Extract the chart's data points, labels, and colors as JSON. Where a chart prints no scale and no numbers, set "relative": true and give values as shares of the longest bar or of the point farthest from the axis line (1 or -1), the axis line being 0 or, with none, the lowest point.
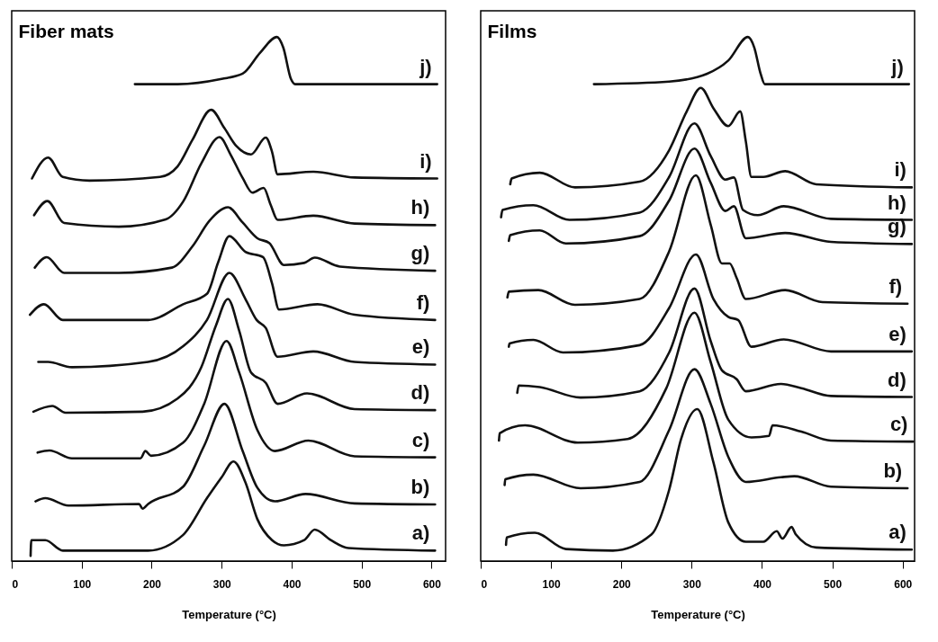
{
  "chart_data": [
    {
      "type": "line",
      "title": "Fiber mats",
      "xlabel": "Temperature (°C)",
      "relative": true,
      "xlim": [
        0,
        620
      ],
      "xticks": [
        0,
        100,
        200,
        300,
        400,
        500,
        600
      ],
      "series": [
        {
          "name": "a)",
          "color": "#111111",
          "x": [
            27,
            28,
            48,
            73,
            195,
            245,
            279,
            300,
            317,
            334,
            351,
            372,
            389,
            418,
            433,
            456,
            481,
            605
          ],
          "values": [
            0.01,
            0.04,
            0.04,
            0.02,
            0.02,
            0.05,
            0.12,
            0.16,
            0.19,
            0.15,
            0.08,
            0.04,
            0.03,
            0.04,
            0.06,
            0.04,
            0.025,
            0.02
          ]
        },
        {
          "name": "b)",
          "color": "#111111",
          "x": [
            34,
            48,
            81,
            182,
            187,
            195,
            245,
            275,
            304,
            330,
            351,
            376,
            420,
            490,
            605
          ],
          "values": [
            0.114,
            0.12,
            0.106,
            0.109,
            0.1,
            0.109,
            0.142,
            0.22,
            0.3,
            0.21,
            0.14,
            0.114,
            0.128,
            0.11,
            0.108
          ]
        },
        {
          "name": "c)",
          "color": "#111111",
          "x": [
            37,
            54,
            86,
            184,
            191,
            199,
            245,
            275,
            307,
            325,
            351,
            376,
            424,
            490,
            605
          ],
          "values": [
            0.207,
            0.211,
            0.196,
            0.196,
            0.21,
            0.201,
            0.226,
            0.3,
            0.42,
            0.36,
            0.25,
            0.21,
            0.23,
            0.2,
            0.198
          ]
        },
        {
          "name": "d)",
          "color": "#111111",
          "x": [
            31,
            58,
            77,
            187,
            237,
            271,
            292,
            309,
            325,
            342,
            363,
            380,
            422,
            490,
            605
          ],
          "values": [
            0.285,
            0.296,
            0.283,
            0.285,
            0.31,
            0.37,
            0.45,
            0.5,
            0.44,
            0.36,
            0.34,
            0.3,
            0.32,
            0.29,
            0.288
          ]
        },
        {
          "name": "e)",
          "color": "#111111",
          "x": [
            38,
            52,
            86,
            195,
            245,
            279,
            311,
            334,
            350,
            363,
            380,
            431,
            490,
            605
          ],
          "values": [
            0.38,
            0.38,
            0.37,
            0.38,
            0.41,
            0.46,
            0.55,
            0.5,
            0.46,
            0.445,
            0.39,
            0.4,
            0.38,
            0.375
          ]
        },
        {
          "name": "f)",
          "color": "#111111",
          "x": [
            26,
            46,
            73,
            195,
            245,
            279,
            295,
            311,
            334,
            359,
            372,
            382,
            437,
            490,
            605
          ],
          "values": [
            0.47,
            0.49,
            0.46,
            0.46,
            0.49,
            0.51,
            0.57,
            0.62,
            0.59,
            0.58,
            0.53,
            0.48,
            0.49,
            0.47,
            0.46
          ]
        },
        {
          "name": "g)",
          "color": "#111111",
          "x": [
            33,
            50,
            75,
            153,
            229,
            258,
            283,
            309,
            330,
            351,
            368,
            389,
            418,
            433,
            469,
            605
          ],
          "values": [
            0.56,
            0.58,
            0.55,
            0.55,
            0.56,
            0.6,
            0.65,
            0.675,
            0.646,
            0.616,
            0.607,
            0.565,
            0.569,
            0.579,
            0.562,
            0.554
          ]
        },
        {
          "name": "h)",
          "color": "#111111",
          "x": [
            32,
            51,
            75,
            153,
            220,
            245,
            271,
            297,
            313,
            330,
            344,
            360,
            370,
            380,
            431,
            490,
            605
          ],
          "values": [
            0.66,
            0.687,
            0.645,
            0.638,
            0.652,
            0.686,
            0.759,
            0.809,
            0.775,
            0.731,
            0.703,
            0.712,
            0.68,
            0.651,
            0.659,
            0.644,
            0.641
          ]
        },
        {
          "name": "i)",
          "color": "#111111",
          "x": [
            29,
            52,
            73,
            111,
            212,
            237,
            258,
            285,
            304,
            321,
            342,
            363,
            372,
            380,
            431,
            490,
            608
          ],
          "values": [
            0.73,
            0.77,
            0.733,
            0.726,
            0.733,
            0.753,
            0.803,
            0.861,
            0.826,
            0.792,
            0.776,
            0.808,
            0.781,
            0.738,
            0.743,
            0.732,
            0.73
          ]
        },
        {
          "name": "j)",
          "color": "#111111",
          "x": [
            176,
            237,
            300,
            330,
            355,
            379,
            388,
            399,
            405,
            608
          ],
          "values": [
            0.91,
            0.91,
            0.92,
            0.93,
            0.97,
            1.0,
            0.98,
            0.92,
            0.91,
            0.91
          ]
        }
      ]
    },
    {
      "type": "line",
      "title": "Films",
      "xlabel": "Temperature (°C)",
      "relative": true,
      "xlim": [
        0,
        617
      ],
      "xticks": [
        0,
        100,
        200,
        300,
        400,
        500,
        600
      ],
      "series": [
        {
          "name": "a)",
          "color": "#111111",
          "x": [
            36,
            37,
            77,
            121,
            188,
            243,
            268,
            285,
            308,
            331,
            352,
            377,
            402,
            421,
            429,
            442,
            448,
            477,
            613
          ],
          "values": [
            0.031,
            0.045,
            0.054,
            0.023,
            0.02,
            0.051,
            0.136,
            0.233,
            0.29,
            0.188,
            0.074,
            0.037,
            0.037,
            0.057,
            0.043,
            0.065,
            0.051,
            0.026,
            0.022
          ]
        },
        {
          "name": "b)",
          "color": "#111111",
          "x": [
            34,
            35,
            75,
            142,
            226,
            268,
            304,
            327,
            352,
            377,
            427,
            446,
            498,
            607
          ],
          "values": [
            0.145,
            0.156,
            0.165,
            0.139,
            0.151,
            0.25,
            0.366,
            0.3,
            0.199,
            0.151,
            0.16,
            0.162,
            0.142,
            0.139
          ]
        },
        {
          "name": "c)",
          "color": "#111111",
          "x": [
            26,
            27,
            63,
            138,
            209,
            264,
            304,
            327,
            352,
            385,
            410,
            415,
            456,
            498,
            615
          ],
          "values": [
            0.23,
            0.244,
            0.259,
            0.226,
            0.233,
            0.33,
            0.474,
            0.38,
            0.27,
            0.236,
            0.239,
            0.259,
            0.247,
            0.23,
            0.228
          ]
        },
        {
          "name": "d)",
          "color": "#111111",
          "x": [
            52,
            54,
            84,
            142,
            226,
            268,
            304,
            327,
            343,
            364,
            377,
            427,
            456,
            498,
            613
          ],
          "values": [
            0.321,
            0.335,
            0.332,
            0.312,
            0.324,
            0.398,
            0.52,
            0.42,
            0.364,
            0.347,
            0.324,
            0.338,
            0.33,
            0.315,
            0.313
          ]
        },
        {
          "name": "e)",
          "color": "#111111",
          "x": [
            40,
            41,
            75,
            117,
            226,
            268,
            306,
            331,
            352,
            366,
            385,
            431,
            498,
            613
          ],
          "values": [
            0.409,
            0.415,
            0.422,
            0.398,
            0.412,
            0.483,
            0.585,
            0.5,
            0.466,
            0.46,
            0.409,
            0.423,
            0.4,
            0.4
          ]
        },
        {
          "name": "f)",
          "color": "#111111",
          "x": [
            38,
            40,
            82,
            134,
            226,
            268,
            306,
            327,
            343,
            354,
            364,
            377,
            433,
            486,
            607
          ],
          "values": [
            0.503,
            0.514,
            0.517,
            0.489,
            0.5,
            0.591,
            0.736,
            0.642,
            0.568,
            0.568,
            0.54,
            0.5,
            0.517,
            0.494,
            0.491
          ]
        },
        {
          "name": "g)",
          "color": "#111111",
          "x": [
            40,
            42,
            84,
            121,
            226,
            268,
            304,
            327,
            348,
            360,
            377,
            433,
            498,
            613
          ],
          "values": [
            0.611,
            0.622,
            0.631,
            0.606,
            0.62,
            0.688,
            0.787,
            0.722,
            0.668,
            0.677,
            0.616,
            0.626,
            0.609,
            0.605
          ]
        },
        {
          "name": "h)",
          "color": "#111111",
          "x": [
            29,
            31,
            75,
            126,
            226,
            268,
            304,
            327,
            348,
            360,
            373,
            394,
            431,
            498,
            613
          ],
          "values": [
            0.656,
            0.67,
            0.679,
            0.651,
            0.665,
            0.733,
            0.835,
            0.773,
            0.728,
            0.732,
            0.67,
            0.66,
            0.677,
            0.653,
            0.651
          ]
        },
        {
          "name": "i)",
          "color": "#111111",
          "x": [
            42,
            44,
            84,
            134,
            226,
            268,
            293,
            313,
            331,
            352,
            369,
            377,
            385,
            402,
            433,
            477,
            613
          ],
          "values": [
            0.719,
            0.73,
            0.741,
            0.713,
            0.724,
            0.784,
            0.858,
            0.903,
            0.864,
            0.83,
            0.858,
            0.801,
            0.733,
            0.733,
            0.744,
            0.719,
            0.713
          ]
        },
        {
          "name": "j)",
          "color": "#111111",
          "x": [
            161,
            268,
            322,
            352,
            380,
            389,
            398,
            404,
            609
          ],
          "values": [
            0.91,
            0.915,
            0.93,
            0.955,
            1.0,
            0.98,
            0.93,
            0.91,
            0.91
          ]
        }
      ]
    }
  ]
}
